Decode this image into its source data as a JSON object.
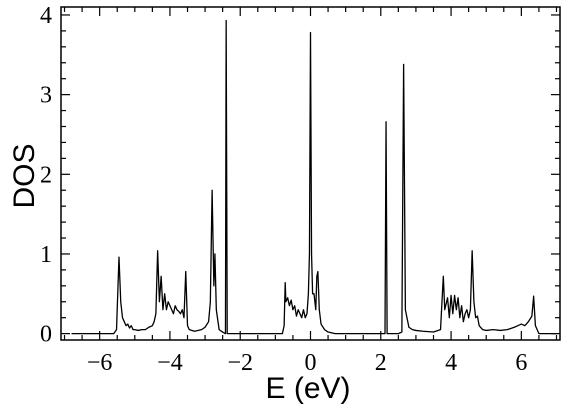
{
  "chart_data": {
    "type": "line",
    "title": "",
    "xlabel": "E (eV)",
    "ylabel": "DOS",
    "xlim": [
      -7.1,
      7.1
    ],
    "ylim": [
      -0.08,
      4.1
    ],
    "grid": false,
    "line_color": "#000000",
    "x_ticks_major": [
      -6,
      -4,
      -2,
      0,
      2,
      4,
      6
    ],
    "x_tick_labels": [
      "−6",
      "−4",
      "−2",
      "0",
      "2",
      "4",
      "6"
    ],
    "y_ticks_major": [
      0,
      1,
      2,
      3,
      4
    ],
    "y_tick_labels": [
      "0",
      "1",
      "2",
      "3",
      "4"
    ],
    "series": [
      {
        "values": [
          [
            -6.8,
            0.0
          ],
          [
            -5.6,
            0.0
          ],
          [
            -5.52,
            0.05
          ],
          [
            -5.45,
            0.96
          ],
          [
            -5.4,
            0.4
          ],
          [
            -5.35,
            0.2
          ],
          [
            -5.3,
            0.15
          ],
          [
            -5.25,
            0.1
          ],
          [
            -5.2,
            0.12
          ],
          [
            -5.15,
            0.07
          ],
          [
            -5.1,
            0.1
          ],
          [
            -5.05,
            0.05
          ],
          [
            -5.0,
            0.05
          ],
          [
            -4.9,
            0.04
          ],
          [
            -4.8,
            0.05
          ],
          [
            -4.7,
            0.05
          ],
          [
            -4.6,
            0.08
          ],
          [
            -4.5,
            0.1
          ],
          [
            -4.45,
            0.15
          ],
          [
            -4.4,
            0.25
          ],
          [
            -4.35,
            1.04
          ],
          [
            -4.3,
            0.4
          ],
          [
            -4.25,
            0.72
          ],
          [
            -4.2,
            0.3
          ],
          [
            -4.15,
            0.5
          ],
          [
            -4.1,
            0.3
          ],
          [
            -4.05,
            0.4
          ],
          [
            -4.0,
            0.35
          ],
          [
            -3.95,
            0.3
          ],
          [
            -3.9,
            0.25
          ],
          [
            -3.85,
            0.35
          ],
          [
            -3.8,
            0.3
          ],
          [
            -3.75,
            0.28
          ],
          [
            -3.7,
            0.25
          ],
          [
            -3.65,
            0.3
          ],
          [
            -3.6,
            0.2
          ],
          [
            -3.55,
            0.78
          ],
          [
            -3.5,
            0.1
          ],
          [
            -3.45,
            0.05
          ],
          [
            -3.3,
            0.03
          ],
          [
            -3.1,
            0.05
          ],
          [
            -3.0,
            0.08
          ],
          [
            -2.9,
            0.15
          ],
          [
            -2.85,
            0.4
          ],
          [
            -2.8,
            1.8
          ],
          [
            -2.75,
            0.6
          ],
          [
            -2.72,
            1.0
          ],
          [
            -2.68,
            0.3
          ],
          [
            -2.6,
            0.05
          ],
          [
            -2.5,
            0.02
          ],
          [
            -2.42,
            0.0
          ],
          [
            -2.4,
            3.93
          ],
          [
            -2.37,
            0.0
          ],
          [
            -1.5,
            0.0
          ],
          [
            -0.8,
            0.0
          ],
          [
            -0.75,
            0.1
          ],
          [
            -0.72,
            0.64
          ],
          [
            -0.7,
            0.4
          ],
          [
            -0.65,
            0.45
          ],
          [
            -0.6,
            0.35
          ],
          [
            -0.55,
            0.42
          ],
          [
            -0.5,
            0.3
          ],
          [
            -0.45,
            0.35
          ],
          [
            -0.4,
            0.22
          ],
          [
            -0.35,
            0.3
          ],
          [
            -0.3,
            0.25
          ],
          [
            -0.25,
            0.2
          ],
          [
            -0.2,
            0.3
          ],
          [
            -0.15,
            0.2
          ],
          [
            -0.1,
            0.25
          ],
          [
            -0.06,
            0.5
          ],
          [
            -0.03,
            1.0
          ],
          [
            0.0,
            3.78
          ],
          [
            0.03,
            1.0
          ],
          [
            0.06,
            0.5
          ],
          [
            0.1,
            0.5
          ],
          [
            0.15,
            0.3
          ],
          [
            0.18,
            0.72
          ],
          [
            0.21,
            0.78
          ],
          [
            0.25,
            0.3
          ],
          [
            0.3,
            0.12
          ],
          [
            0.4,
            0.05
          ],
          [
            0.5,
            0.02
          ],
          [
            0.7,
            0.0
          ],
          [
            2.0,
            0.0
          ],
          [
            2.12,
            0.0
          ],
          [
            2.15,
            2.66
          ],
          [
            2.18,
            0.0
          ],
          [
            2.5,
            0.0
          ],
          [
            2.6,
            0.02
          ],
          [
            2.65,
            3.38
          ],
          [
            2.7,
            0.3
          ],
          [
            2.8,
            0.08
          ],
          [
            2.9,
            0.05
          ],
          [
            3.0,
            0.04
          ],
          [
            3.2,
            0.03
          ],
          [
            3.5,
            0.02
          ],
          [
            3.7,
            0.05
          ],
          [
            3.78,
            0.72
          ],
          [
            3.82,
            0.3
          ],
          [
            3.9,
            0.45
          ],
          [
            3.95,
            0.2
          ],
          [
            4.0,
            0.48
          ],
          [
            4.05,
            0.25
          ],
          [
            4.1,
            0.48
          ],
          [
            4.15,
            0.3
          ],
          [
            4.2,
            0.45
          ],
          [
            4.25,
            0.2
          ],
          [
            4.3,
            0.35
          ],
          [
            4.35,
            0.15
          ],
          [
            4.4,
            0.25
          ],
          [
            4.45,
            0.3
          ],
          [
            4.5,
            0.2
          ],
          [
            4.55,
            0.3
          ],
          [
            4.6,
            1.04
          ],
          [
            4.65,
            0.4
          ],
          [
            4.7,
            0.2
          ],
          [
            4.75,
            0.22
          ],
          [
            4.8,
            0.1
          ],
          [
            4.9,
            0.05
          ],
          [
            5.0,
            0.04
          ],
          [
            5.2,
            0.05
          ],
          [
            5.4,
            0.04
          ],
          [
            5.6,
            0.05
          ],
          [
            5.8,
            0.08
          ],
          [
            5.9,
            0.1
          ],
          [
            6.0,
            0.12
          ],
          [
            6.1,
            0.1
          ],
          [
            6.2,
            0.15
          ],
          [
            6.3,
            0.22
          ],
          [
            6.35,
            0.47
          ],
          [
            6.4,
            0.1
          ],
          [
            6.5,
            0.0
          ],
          [
            7.0,
            0.0
          ]
        ]
      }
    ]
  }
}
